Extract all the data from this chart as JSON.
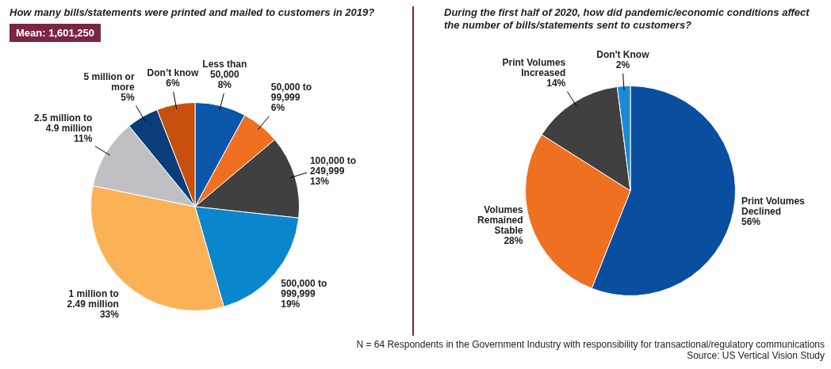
{
  "chart_data": [
    {
      "type": "pie",
      "title": "How many bills/statements were printed and mailed to customers in 2019?",
      "annotations": [
        "Mean: 1,601,250"
      ],
      "categories": [
        "Less than 50,000",
        "50,000 to 99,999",
        "100,000 to 249,999",
        "500,000 to 999,999",
        "1 million to 2.49 million",
        "2.5 million to 4.9 million",
        "5 million or more",
        "Don’t know"
      ],
      "values": [
        8,
        6,
        13,
        19,
        33,
        11,
        5,
        6
      ],
      "value_labels": [
        "8%",
        "6%",
        "13%",
        "19%",
        "33%",
        "11%",
        "5%",
        "6%"
      ],
      "colors": [
        "#0a56a8",
        "#f07022",
        "#404040",
        "#0a86cc",
        "#fbb257",
        "#c0c0c4",
        "#0b3d7a",
        "#c8500e"
      ]
    },
    {
      "type": "pie",
      "title": "During the first half of 2020, how did pandemic/economic conditions affect the number of bills/statements sent to customers?",
      "annotations": [
        "N = 64 Respondents in the Government Industry with responsibility for transactional/regulatory communications",
        "Source: US Vertical Vision Study"
      ],
      "categories": [
        "Print Volumes Declined",
        "Volumes Remained Stable",
        "Print Volumes Increased",
        "Don't Know"
      ],
      "values": [
        56,
        28,
        14,
        2
      ],
      "value_labels": [
        "56%",
        "28%",
        "14%",
        "2%"
      ],
      "colors": [
        "#0a4ea0",
        "#f07022",
        "#404040",
        "#1a8ad4"
      ]
    }
  ]
}
